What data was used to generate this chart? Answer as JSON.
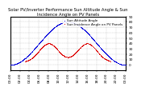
{
  "title": "Solar PV/Inverter Performance Sun Altitude Angle & Sun Incidence Angle on PV Panels",
  "legend_altitude": "Sun Altitude Angle",
  "legend_incidence": "Sun Incidence Angle on PV Panels",
  "altitude_color": "#0000dd",
  "incidence_color": "#dd0000",
  "ylim": [
    -10,
    90
  ],
  "ytick_vals": [
    0,
    10,
    20,
    30,
    40,
    50,
    60,
    70,
    80,
    90
  ],
  "background_color": "#ffffff",
  "title_fontsize": 3.8,
  "legend_fontsize": 3.0,
  "tick_fontsize": 3.2,
  "grid_color": "#999999",
  "xlim": [
    0,
    24
  ],
  "xtick_vals": [
    0,
    2,
    4,
    6,
    8,
    10,
    12,
    14,
    16,
    18,
    20,
    22,
    24
  ],
  "xtick_labels": [
    "00:00",
    "02:00",
    "04:00",
    "06:00",
    "08:00",
    "10:00",
    "12:00",
    "14:00",
    "16:00",
    "18:00",
    "20:00",
    "22:00",
    "00:00"
  ],
  "dot_size": 0.4
}
